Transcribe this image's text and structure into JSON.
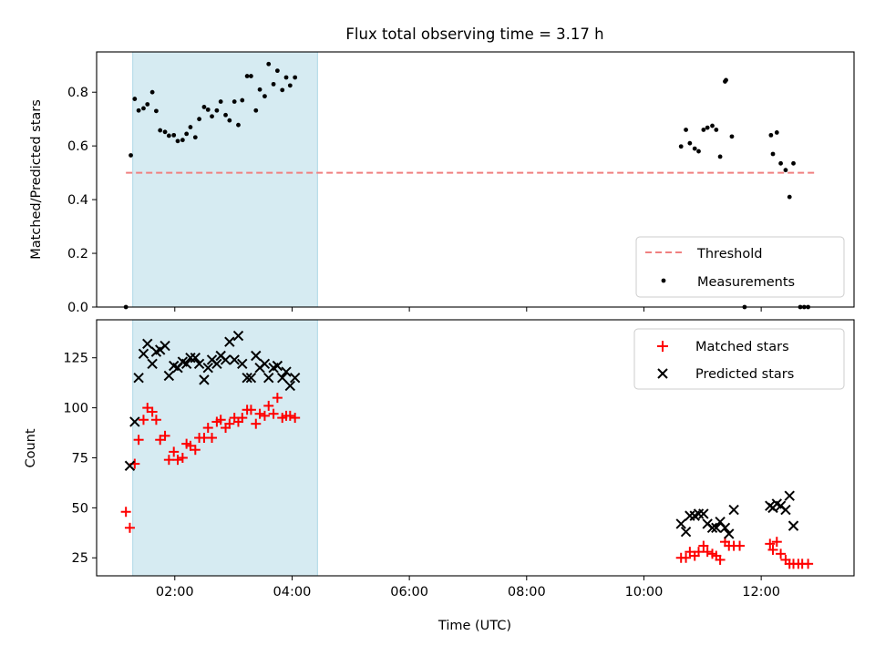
{
  "chart_data": [
    {
      "type": "scatter",
      "title": "Flux total observing time = 3.17 h",
      "xlabel": "",
      "ylabel": "Matched/Predicted stars",
      "xlim": [
        "00:40",
        "13:35"
      ],
      "ylim": [
        0,
        0.95
      ],
      "yticks": [
        "0.0",
        "0.2",
        "0.4",
        "0.6",
        "0.8"
      ],
      "yticks_values": [
        0,
        0.2,
        0.4,
        0.6,
        0.8
      ],
      "shaded_region": {
        "x": [
          "01:17",
          "04:26"
        ],
        "color": "#add8e6"
      },
      "threshold": {
        "name": "Threshold",
        "y": 0.5,
        "x": [
          "01:10",
          "12:55"
        ],
        "color": "#f08080",
        "style": "dashed"
      },
      "legend": {
        "placement": "lower-right",
        "entries": [
          "Threshold",
          "Measurements"
        ]
      },
      "series": [
        {
          "name": "Measurements",
          "color": "#000000",
          "marker": "dot",
          "points": [
            [
              "01:10",
              0.0
            ],
            [
              "01:15",
              0.565
            ],
            [
              "01:19",
              0.775
            ],
            [
              "01:23",
              0.732
            ],
            [
              "01:28",
              0.74
            ],
            [
              "01:32",
              0.755
            ],
            [
              "01:37",
              0.8
            ],
            [
              "01:41",
              0.73
            ],
            [
              "01:45",
              0.658
            ],
            [
              "01:50",
              0.652
            ],
            [
              "01:54",
              0.638
            ],
            [
              "01:59",
              0.64
            ],
            [
              "02:03",
              0.618
            ],
            [
              "02:08",
              0.622
            ],
            [
              "02:12",
              0.645
            ],
            [
              "02:16",
              0.67
            ],
            [
              "02:21",
              0.632
            ],
            [
              "02:25",
              0.7
            ],
            [
              "02:30",
              0.745
            ],
            [
              "02:34",
              0.735
            ],
            [
              "02:38",
              0.71
            ],
            [
              "02:43",
              0.732
            ],
            [
              "02:47",
              0.765
            ],
            [
              "02:52",
              0.715
            ],
            [
              "02:56",
              0.695
            ],
            [
              "03:01",
              0.765
            ],
            [
              "03:05",
              0.678
            ],
            [
              "03:09",
              0.77
            ],
            [
              "03:14",
              0.86
            ],
            [
              "03:18",
              0.86
            ],
            [
              "03:23",
              0.732
            ],
            [
              "03:27",
              0.81
            ],
            [
              "03:32",
              0.785
            ],
            [
              "03:36",
              0.905
            ],
            [
              "03:41",
              0.83
            ],
            [
              "03:45",
              0.88
            ],
            [
              "03:50",
              0.808
            ],
            [
              "03:54",
              0.855
            ],
            [
              "03:58",
              0.825
            ],
            [
              "04:03",
              0.855
            ],
            [
              "10:38",
              0.598
            ],
            [
              "10:43",
              0.66
            ],
            [
              "10:47",
              0.61
            ],
            [
              "10:52",
              0.59
            ],
            [
              "10:56",
              0.58
            ],
            [
              "11:01",
              0.66
            ],
            [
              "11:05",
              0.668
            ],
            [
              "11:10",
              0.675
            ],
            [
              "11:14",
              0.66
            ],
            [
              "11:18",
              0.56
            ],
            [
              "11:23",
              0.84
            ],
            [
              "11:24",
              0.845
            ],
            [
              "11:30",
              0.635
            ],
            [
              "11:43",
              0.0
            ],
            [
              "12:10",
              0.64
            ],
            [
              "12:12",
              0.57
            ],
            [
              "12:16",
              0.65
            ],
            [
              "12:20",
              0.535
            ],
            [
              "12:25",
              0.51
            ],
            [
              "12:29",
              0.41
            ],
            [
              "12:33",
              0.535
            ],
            [
              "12:40",
              0.0
            ],
            [
              "12:44",
              0.0
            ],
            [
              "12:48",
              0.0
            ]
          ]
        }
      ]
    },
    {
      "type": "scatter",
      "title": "",
      "xlabel": "Time (UTC)",
      "ylabel": "Count",
      "xlim": [
        "00:40",
        "13:35"
      ],
      "ylim": [
        16,
        144
      ],
      "xticks": [
        "02:00",
        "04:00",
        "06:00",
        "08:00",
        "10:00",
        "12:00"
      ],
      "yticks": [
        "25",
        "50",
        "75",
        "100",
        "125"
      ],
      "yticks_values": [
        25,
        50,
        75,
        100,
        125
      ],
      "shaded_region": {
        "x": [
          "01:17",
          "04:26"
        ],
        "color": "#add8e6"
      },
      "legend": {
        "placement": "upper-right",
        "entries": [
          "Matched stars",
          "Predicted stars"
        ]
      },
      "series": [
        {
          "name": "Matched stars",
          "color": "#ff0000",
          "marker": "plus",
          "points": [
            [
              "01:10",
              48
            ],
            [
              "01:14",
              40
            ],
            [
              "01:19",
              72
            ],
            [
              "01:23",
              84
            ],
            [
              "01:28",
              94
            ],
            [
              "01:32",
              100
            ],
            [
              "01:37",
              98
            ],
            [
              "01:41",
              94
            ],
            [
              "01:45",
              84
            ],
            [
              "01:50",
              86
            ],
            [
              "01:54",
              74
            ],
            [
              "01:59",
              78
            ],
            [
              "02:03",
              74
            ],
            [
              "02:08",
              75
            ],
            [
              "02:12",
              82
            ],
            [
              "02:16",
              81
            ],
            [
              "02:21",
              79
            ],
            [
              "02:25",
              85
            ],
            [
              "02:30",
              85
            ],
            [
              "02:34",
              90
            ],
            [
              "02:38",
              85
            ],
            [
              "02:43",
              93
            ],
            [
              "02:47",
              94
            ],
            [
              "02:52",
              90
            ],
            [
              "02:56",
              92
            ],
            [
              "03:01",
              95
            ],
            [
              "03:05",
              93
            ],
            [
              "03:09",
              95
            ],
            [
              "03:14",
              99
            ],
            [
              "03:18",
              99
            ],
            [
              "03:23",
              92
            ],
            [
              "03:27",
              97
            ],
            [
              "03:32",
              96
            ],
            [
              "03:36",
              101
            ],
            [
              "03:41",
              97
            ],
            [
              "03:45",
              105
            ],
            [
              "03:50",
              95
            ],
            [
              "03:54",
              96
            ],
            [
              "03:58",
              96
            ],
            [
              "04:03",
              95
            ],
            [
              "10:38",
              25
            ],
            [
              "10:43",
              25
            ],
            [
              "10:47",
              28
            ],
            [
              "10:52",
              26
            ],
            [
              "10:56",
              28
            ],
            [
              "11:01",
              31
            ],
            [
              "11:05",
              28
            ],
            [
              "11:10",
              27
            ],
            [
              "11:14",
              26
            ],
            [
              "11:18",
              24
            ],
            [
              "11:23",
              33
            ],
            [
              "11:27",
              31
            ],
            [
              "11:32",
              31
            ],
            [
              "11:38",
              31
            ],
            [
              "12:09",
              32
            ],
            [
              "12:12",
              29
            ],
            [
              "12:16",
              33
            ],
            [
              "12:20",
              27
            ],
            [
              "12:25",
              24
            ],
            [
              "12:29",
              22
            ],
            [
              "12:33",
              22
            ],
            [
              "12:38",
              22
            ],
            [
              "12:42",
              22
            ],
            [
              "12:48",
              22
            ]
          ]
        },
        {
          "name": "Predicted stars",
          "color": "#000000",
          "marker": "x",
          "points": [
            [
              "01:14",
              71
            ],
            [
              "01:19",
              93
            ],
            [
              "01:23",
              115
            ],
            [
              "01:28",
              127
            ],
            [
              "01:32",
              132
            ],
            [
              "01:37",
              122
            ],
            [
              "01:41",
              128
            ],
            [
              "01:45",
              129
            ],
            [
              "01:50",
              131
            ],
            [
              "01:54",
              116
            ],
            [
              "01:59",
              121
            ],
            [
              "02:03",
              120
            ],
            [
              "02:08",
              123
            ],
            [
              "02:12",
              122
            ],
            [
              "02:16",
              125
            ],
            [
              "02:21",
              125
            ],
            [
              "02:25",
              122
            ],
            [
              "02:30",
              114
            ],
            [
              "02:34",
              120
            ],
            [
              "02:38",
              124
            ],
            [
              "02:43",
              122
            ],
            [
              "02:47",
              126
            ],
            [
              "02:52",
              124
            ],
            [
              "02:56",
              133
            ],
            [
              "03:01",
              124
            ],
            [
              "03:05",
              136
            ],
            [
              "03:09",
              122
            ],
            [
              "03:14",
              115
            ],
            [
              "03:18",
              115
            ],
            [
              "03:23",
              126
            ],
            [
              "03:27",
              120
            ],
            [
              "03:32",
              122
            ],
            [
              "03:36",
              115
            ],
            [
              "03:41",
              120
            ],
            [
              "03:45",
              121
            ],
            [
              "03:50",
              115
            ],
            [
              "03:54",
              118
            ],
            [
              "03:58",
              111
            ],
            [
              "04:03",
              115
            ],
            [
              "10:38",
              42
            ],
            [
              "10:43",
              38
            ],
            [
              "10:47",
              46
            ],
            [
              "10:52",
              46
            ],
            [
              "10:56",
              47
            ],
            [
              "11:01",
              47
            ],
            [
              "11:05",
              42
            ],
            [
              "11:10",
              40
            ],
            [
              "11:14",
              40
            ],
            [
              "11:18",
              43
            ],
            [
              "11:23",
              40
            ],
            [
              "11:27",
              37
            ],
            [
              "11:32",
              49
            ],
            [
              "12:09",
              51
            ],
            [
              "12:12",
              50
            ],
            [
              "12:16",
              52
            ],
            [
              "12:20",
              51
            ],
            [
              "12:25",
              49
            ],
            [
              "12:29",
              56
            ],
            [
              "12:33",
              41
            ]
          ]
        }
      ]
    }
  ]
}
